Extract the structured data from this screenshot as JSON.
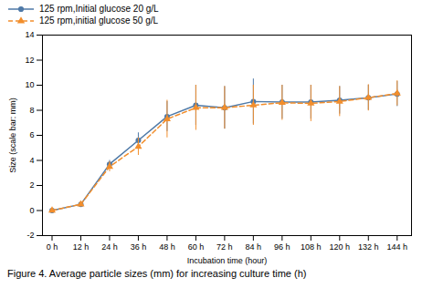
{
  "chart_data": {
    "type": "line",
    "caption": "Figure 4. Average particle sizes (mm) for increasing culture time (h)",
    "xlabel": "Incubation time (hour)",
    "ylabel": "Size (scale bar: mm)",
    "x": [
      0,
      12,
      24,
      36,
      48,
      60,
      72,
      84,
      96,
      108,
      120,
      132,
      144
    ],
    "xlim": [
      -4,
      150
    ],
    "xticks": [
      {
        "value": 0,
        "label": "0 h"
      },
      {
        "value": 12,
        "label": "12 h"
      },
      {
        "value": 24,
        "label": "24 h"
      },
      {
        "value": 36,
        "label": "36 h"
      },
      {
        "value": 48,
        "label": "48 h"
      },
      {
        "value": 60,
        "label": "60 h"
      },
      {
        "value": 72,
        "label": "72 h"
      },
      {
        "value": 84,
        "label": "84 h"
      },
      {
        "value": 96,
        "label": "96 h"
      },
      {
        "value": 108,
        "label": "108 h"
      },
      {
        "value": 120,
        "label": "120 h"
      },
      {
        "value": 132,
        "label": "132 h"
      },
      {
        "value": 144,
        "label": "144 h"
      }
    ],
    "ylim": [
      -2,
      14
    ],
    "yticks": [
      -2,
      0,
      2,
      4,
      6,
      8,
      10,
      12,
      14
    ],
    "grid": false,
    "legend": "upper left",
    "series": [
      {
        "name": "125 rpm,Initial glucose 20 g/L",
        "marker": "circle",
        "line_style": "solid",
        "values": [
          0.0,
          0.5,
          3.7,
          5.6,
          7.5,
          8.4,
          8.2,
          8.7,
          8.65,
          8.65,
          8.8,
          9.0,
          9.3
        ],
        "errors": [
          0.05,
          0.1,
          0.3,
          0.6,
          1.2,
          1.6,
          1.7,
          1.8,
          1.35,
          1.35,
          1.1,
          1.0,
          1.0
        ]
      },
      {
        "name": "125 rpm,initial glucose 50 g/L",
        "marker": "triangle",
        "line_style": "dashed",
        "values": [
          0.0,
          0.5,
          3.5,
          5.1,
          7.3,
          8.2,
          8.2,
          8.4,
          8.6,
          8.55,
          8.7,
          9.0,
          9.35
        ],
        "errors": [
          0.05,
          0.1,
          0.4,
          0.7,
          1.5,
          1.8,
          1.7,
          1.6,
          1.4,
          1.45,
          1.2,
          1.05,
          1.0
        ]
      }
    ]
  }
}
